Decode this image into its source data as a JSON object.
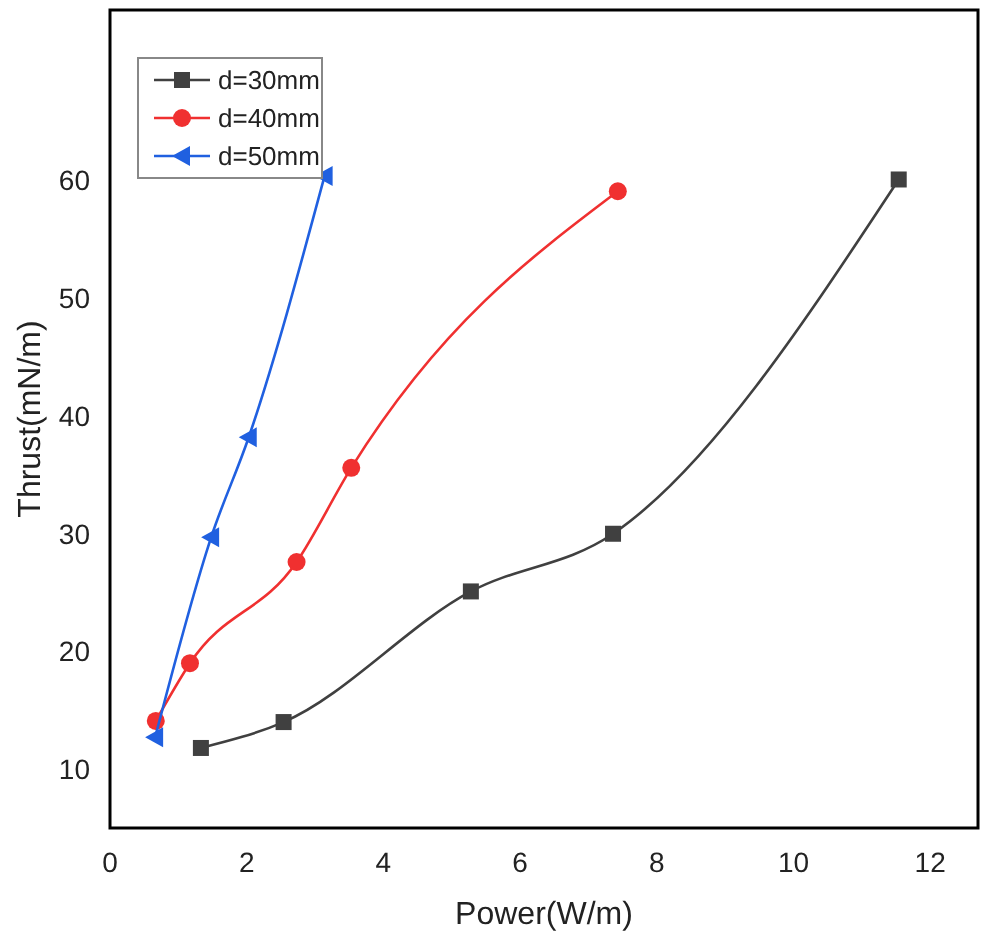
{
  "chart_data": {
    "type": "line",
    "xlabel": "Power(W/m)",
    "ylabel": "Thrust(mN/m)",
    "xlim": [
      0,
      12.7
    ],
    "ylim": [
      5,
      74.5
    ],
    "xticks": [
      0,
      2,
      4,
      6,
      8,
      10,
      12
    ],
    "yticks": [
      10,
      20,
      30,
      40,
      50,
      60
    ],
    "grid": false,
    "legend": "top left",
    "line_style": "solid",
    "series": [
      {
        "name": "d=30mm",
        "color": "#404040",
        "marker": "square",
        "x": [
          1.33,
          2.54,
          5.28,
          7.36,
          11.54
        ],
        "values": [
          11.8,
          14,
          25.1,
          30,
          60.1
        ]
      },
      {
        "name": "d=40mm",
        "color": "#f03030",
        "marker": "circle",
        "x": [
          0.67,
          1.17,
          2.73,
          3.53,
          7.43
        ],
        "values": [
          14.1,
          19,
          27.6,
          35.6,
          59.1
        ]
      },
      {
        "name": "d=50mm",
        "color": "#2060e0",
        "marker": "triangle",
        "x": [
          0.66,
          1.48,
          2.03,
          3.14
        ],
        "values": [
          12.7,
          29.7,
          38.2,
          60.4
        ]
      }
    ]
  }
}
